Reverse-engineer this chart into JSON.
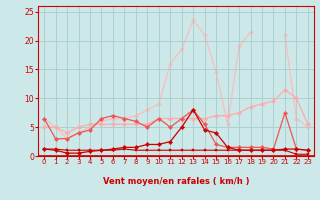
{
  "x": [
    0,
    1,
    2,
    3,
    4,
    5,
    6,
    7,
    8,
    9,
    10,
    11,
    12,
    13,
    14,
    15,
    16,
    17,
    18,
    19,
    20,
    21,
    22,
    23
  ],
  "series": [
    {
      "y": [
        1.2,
        1.2,
        1.0,
        1.0,
        1.0,
        1.0,
        1.0,
        1.2,
        1.0,
        1.0,
        1.0,
        1.0,
        1.0,
        1.0,
        1.0,
        1.0,
        1.0,
        1.0,
        1.0,
        1.0,
        1.0,
        1.0,
        0.3,
        0.3
      ],
      "color": "#cc0000",
      "lw": 0.8,
      "marker": "s",
      "ms": 1.8,
      "zorder": 5
    },
    {
      "y": [
        1.2,
        1.0,
        0.5,
        0.5,
        0.8,
        1.0,
        1.2,
        1.5,
        1.5,
        2.0,
        2.0,
        2.5,
        5.0,
        8.0,
        4.5,
        4.0,
        1.5,
        1.0,
        1.0,
        1.0,
        1.0,
        1.2,
        1.2,
        1.0
      ],
      "color": "#cc0000",
      "lw": 0.9,
      "marker": "D",
      "ms": 2.2,
      "zorder": 4
    },
    {
      "y": [
        6.5,
        3.0,
        3.0,
        4.0,
        4.5,
        6.5,
        7.0,
        6.5,
        6.0,
        5.0,
        6.5,
        5.0,
        6.5,
        8.0,
        5.5,
        2.0,
        1.5,
        1.5,
        1.5,
        1.5,
        1.2,
        7.5,
        1.2,
        1.0
      ],
      "color": "#ee5555",
      "lw": 0.9,
      "marker": "D",
      "ms": 2.2,
      "zorder": 3
    },
    {
      "y": [
        5.0,
        5.0,
        4.0,
        5.0,
        5.5,
        5.5,
        5.5,
        5.5,
        5.5,
        5.5,
        6.5,
        6.5,
        6.5,
        6.5,
        6.5,
        7.0,
        7.0,
        7.5,
        8.5,
        9.0,
        9.5,
        11.5,
        10.0,
        5.5
      ],
      "color": "#ffaaaa",
      "lw": 0.9,
      "marker": "D",
      "ms": 2.2,
      "zorder": 2
    },
    {
      "y": [
        6.5,
        5.0,
        3.0,
        4.0,
        5.0,
        6.0,
        6.5,
        6.5,
        7.0,
        8.0,
        9.0,
        16.0,
        18.5,
        23.5,
        21.0,
        14.5,
        5.5,
        19.0,
        21.5,
        null,
        null,
        21.0,
        6.5,
        5.0
      ],
      "color": "#ffbbbb",
      "lw": 0.9,
      "marker": "D",
      "ms": 2.2,
      "zorder": 1
    }
  ],
  "xlabel": "Vent moyen/en rafales ( km/h )",
  "ylim": [
    0,
    26
  ],
  "xlim": [
    -0.5,
    23.5
  ],
  "yticks": [
    0,
    5,
    10,
    15,
    20,
    25
  ],
  "xticks": [
    0,
    1,
    2,
    3,
    4,
    5,
    6,
    7,
    8,
    9,
    10,
    11,
    12,
    13,
    14,
    15,
    16,
    17,
    18,
    19,
    20,
    21,
    22,
    23
  ],
  "bg_color": "#cce8e8",
  "grid_color": "#aacccc",
  "axes_color": "#cc0000",
  "text_color": "#cc0000",
  "arrow_color": "#cc0000",
  "hline_color": "#cc0000",
  "hline_y": 0.0
}
